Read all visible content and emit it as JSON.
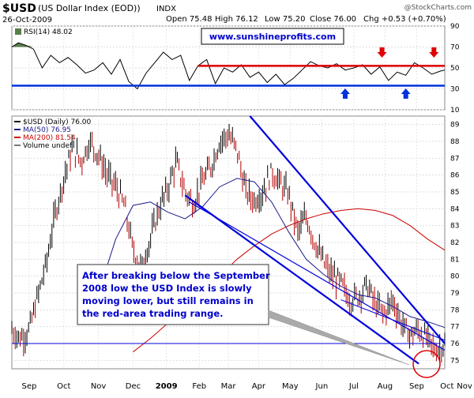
{
  "header": {
    "symbol": "$USD",
    "name": "(US Dollar Index (EOD))",
    "exchange": "INDX",
    "date": "26-Oct-2009",
    "open": "Open 75.48",
    "high": "High 76.12",
    "low": "Low 75.20",
    "close": "Close 76.00",
    "chg": "Chg +0.53 (+0.70%)",
    "copyright": "@StockCharts.com"
  },
  "watermark": "www.sunshineprofits.com",
  "annotation": "After breaking below the September 2008 low the USD Index is slowly moving lower, but still remains in the red-area trading range.",
  "annotation_lines": [
    "After breaking below the September",
    "2008 low the USD Index is slowly",
    "moving lower, but still remains in",
    "the red-area trading range."
  ],
  "colors": {
    "price": "#000000",
    "down_bar": "#b30000",
    "ma50": "#1a1a8c",
    "ma200": "#cc0000",
    "trend": "#0000dd",
    "rsi": "#000000",
    "red_marker": "#e00000",
    "blue_marker": "#0033dd"
  },
  "icons": [
    "red-arrow-down-icon",
    "blue-arrow-up-icon",
    "highlight-circle-icon"
  ],
  "chart_data": [
    {
      "type": "line",
      "title": "RSI(14) 48.02",
      "legend": [
        "RSI(14) 48.02"
      ],
      "ylim": [
        10,
        90
      ],
      "yticks": [
        10,
        30,
        50,
        70,
        90
      ],
      "grid": true,
      "series": [
        {
          "name": "RSI(14) 48.02",
          "x": [
            0,
            0.015,
            0.03,
            0.05,
            0.07,
            0.09,
            0.11,
            0.13,
            0.15,
            0.17,
            0.19,
            0.21,
            0.23,
            0.25,
            0.27,
            0.29,
            0.31,
            0.33,
            0.35,
            0.37,
            0.39,
            0.41,
            0.43,
            0.45,
            0.47,
            0.49,
            0.51,
            0.53,
            0.55,
            0.57,
            0.59,
            0.61,
            0.63,
            0.65,
            0.67,
            0.69,
            0.71,
            0.73,
            0.75,
            0.77,
            0.79,
            0.81,
            0.83,
            0.85,
            0.87,
            0.89,
            0.91,
            0.93,
            0.95,
            0.97,
            0.99,
            1
          ],
          "values": [
            70,
            74,
            72,
            68,
            50,
            62,
            55,
            60,
            53,
            45,
            48,
            55,
            44,
            58,
            37,
            30,
            45,
            55,
            65,
            58,
            62,
            38,
            52,
            58,
            35,
            50,
            46,
            53,
            41,
            46,
            36,
            44,
            34,
            40,
            48,
            56,
            52,
            50,
            54,
            48,
            50,
            53,
            44,
            51,
            38,
            46,
            43,
            55,
            50,
            44,
            47,
            48
          ]
        }
      ],
      "reference_lines": [
        {
          "value": 52,
          "color": "red",
          "from": 0.43,
          "to": 1.0
        },
        {
          "value": 33,
          "color": "blue",
          "from": 0,
          "to": 1.0
        }
      ],
      "markers": {
        "red_down_arrows": [
          0.855,
          0.975
        ],
        "blue_up_arrows": [
          0.77,
          0.91
        ]
      }
    },
    {
      "type": "line",
      "title": "$USD (Daily) 76.00",
      "legend": [
        "$USD (Daily) 76.00",
        "MA(50) 76.95",
        "MA(200) 81.54",
        "Volume undef"
      ],
      "ylim": [
        74.5,
        89.5
      ],
      "yticks": [
        75,
        76,
        77,
        78,
        79,
        80,
        81,
        82,
        83,
        84,
        85,
        86,
        87,
        88,
        89
      ],
      "xlabels": [
        "Sep",
        "Oct",
        "Nov",
        "Dec",
        "2009",
        "Feb",
        "Mar",
        "Apr",
        "May",
        "Jun",
        "Jul",
        "Aug",
        "Sep",
        "Oct",
        "Nov"
      ],
      "xlabel_pos": [
        0.04,
        0.12,
        0.2,
        0.28,
        0.357,
        0.433,
        0.5,
        0.57,
        0.643,
        0.716,
        0.79,
        0.862,
        0.935,
        1.005,
        1.07
      ],
      "grid": true,
      "series": [
        {
          "name": "$USD (Daily) 76.00",
          "x": [
            0,
            0.02,
            0.04,
            0.06,
            0.08,
            0.1,
            0.12,
            0.14,
            0.16,
            0.18,
            0.2,
            0.22,
            0.24,
            0.26,
            0.28,
            0.3,
            0.32,
            0.34,
            0.36,
            0.38,
            0.4,
            0.42,
            0.44,
            0.46,
            0.48,
            0.5,
            0.52,
            0.54,
            0.56,
            0.58,
            0.6,
            0.62,
            0.64,
            0.66,
            0.68,
            0.7,
            0.72,
            0.74,
            0.76,
            0.78,
            0.8,
            0.82,
            0.84,
            0.86,
            0.88,
            0.9,
            0.92,
            0.94,
            0.96,
            0.98,
            1.0
          ],
          "values": [
            76.8,
            76.3,
            76.8,
            78.8,
            80.8,
            83.7,
            85.8,
            87.6,
            86.8,
            88.0,
            87.2,
            86.0,
            85.3,
            84.2,
            81.5,
            80.5,
            82.2,
            84.0,
            85.2,
            86.8,
            85.0,
            84.3,
            85.6,
            86.5,
            88.0,
            88.4,
            87.5,
            85.0,
            84.5,
            85.0,
            86.2,
            85.5,
            84.8,
            82.6,
            83.5,
            82.0,
            80.8,
            80.0,
            79.6,
            78.6,
            78.8,
            79.5,
            78.3,
            77.8,
            78.6,
            77.2,
            76.5,
            76.8,
            76.2,
            75.6,
            76.0
          ]
        },
        {
          "name": "MA(50) 76.95",
          "x": [
            0.2,
            0.24,
            0.28,
            0.32,
            0.36,
            0.4,
            0.44,
            0.48,
            0.52,
            0.56,
            0.6,
            0.64,
            0.68,
            0.72,
            0.76,
            0.8,
            0.84,
            0.88,
            0.92,
            0.96,
            1.0
          ],
          "values": [
            79.0,
            82.2,
            84.2,
            84.4,
            83.8,
            83.4,
            84.1,
            85.3,
            85.8,
            85.6,
            84.4,
            82.6,
            81.0,
            80.1,
            79.4,
            78.9,
            78.7,
            78.2,
            77.6,
            77.3,
            76.95
          ]
        },
        {
          "name": "MA(200) 81.54",
          "x": [
            0.28,
            0.32,
            0.36,
            0.4,
            0.44,
            0.48,
            0.52,
            0.56,
            0.6,
            0.64,
            0.68,
            0.72,
            0.76,
            0.8,
            0.84,
            0.88,
            0.92,
            0.96,
            1.0
          ],
          "values": [
            75.5,
            76.3,
            77.2,
            78.1,
            79.0,
            80.0,
            81.0,
            81.8,
            82.5,
            83.0,
            83.4,
            83.7,
            83.9,
            84.0,
            83.9,
            83.6,
            83.0,
            82.2,
            81.54
          ]
        }
      ],
      "trend_lines": [
        {
          "from": [
            0.55,
            89.5
          ],
          "to": [
            1.0,
            76.0
          ]
        },
        {
          "from": [
            0.4,
            84.8
          ],
          "to": [
            0.94,
            74.8
          ]
        },
        {
          "from": [
            0.0,
            76.0
          ],
          "to": [
            0.99,
            76.0
          ]
        }
      ]
    }
  ]
}
